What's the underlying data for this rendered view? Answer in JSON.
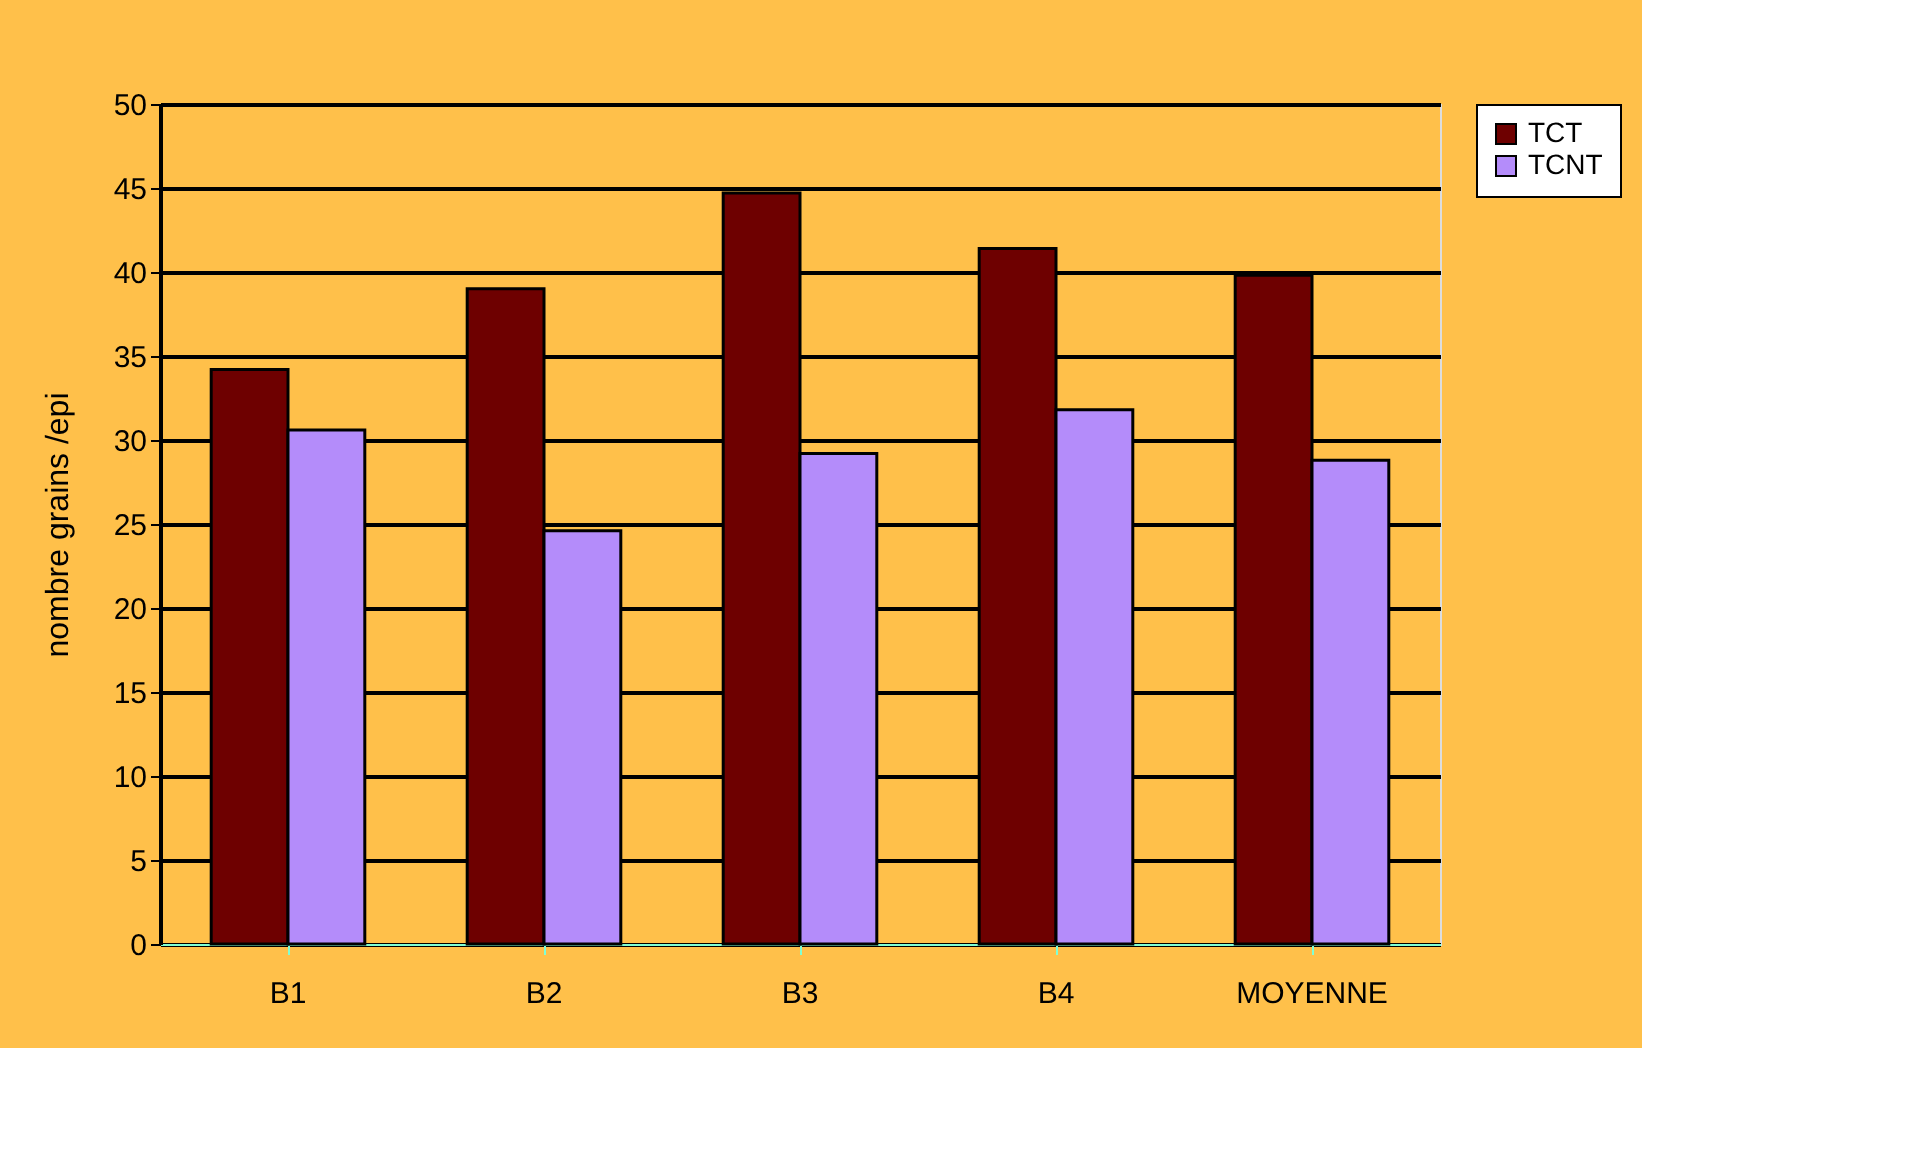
{
  "chart_data": {
    "type": "bar",
    "ylabel": "nombre grains /epi",
    "categories": [
      "B1",
      "B2",
      "B3",
      "B4",
      "MOYENNE"
    ],
    "series": [
      {
        "name": "TCT",
        "color": "#6e0000",
        "values": [
          34.2,
          39.0,
          44.7,
          41.4,
          39.8
        ]
      },
      {
        "name": "TCNT",
        "color": "#b48cfa",
        "values": [
          30.6,
          24.6,
          29.2,
          31.8,
          28.8
        ]
      }
    ],
    "ylim": [
      0,
      50
    ],
    "yticks": [
      0,
      5,
      10,
      15,
      20,
      25,
      30,
      35,
      40,
      45,
      50
    ],
    "grid": "y",
    "legend": "right"
  }
}
